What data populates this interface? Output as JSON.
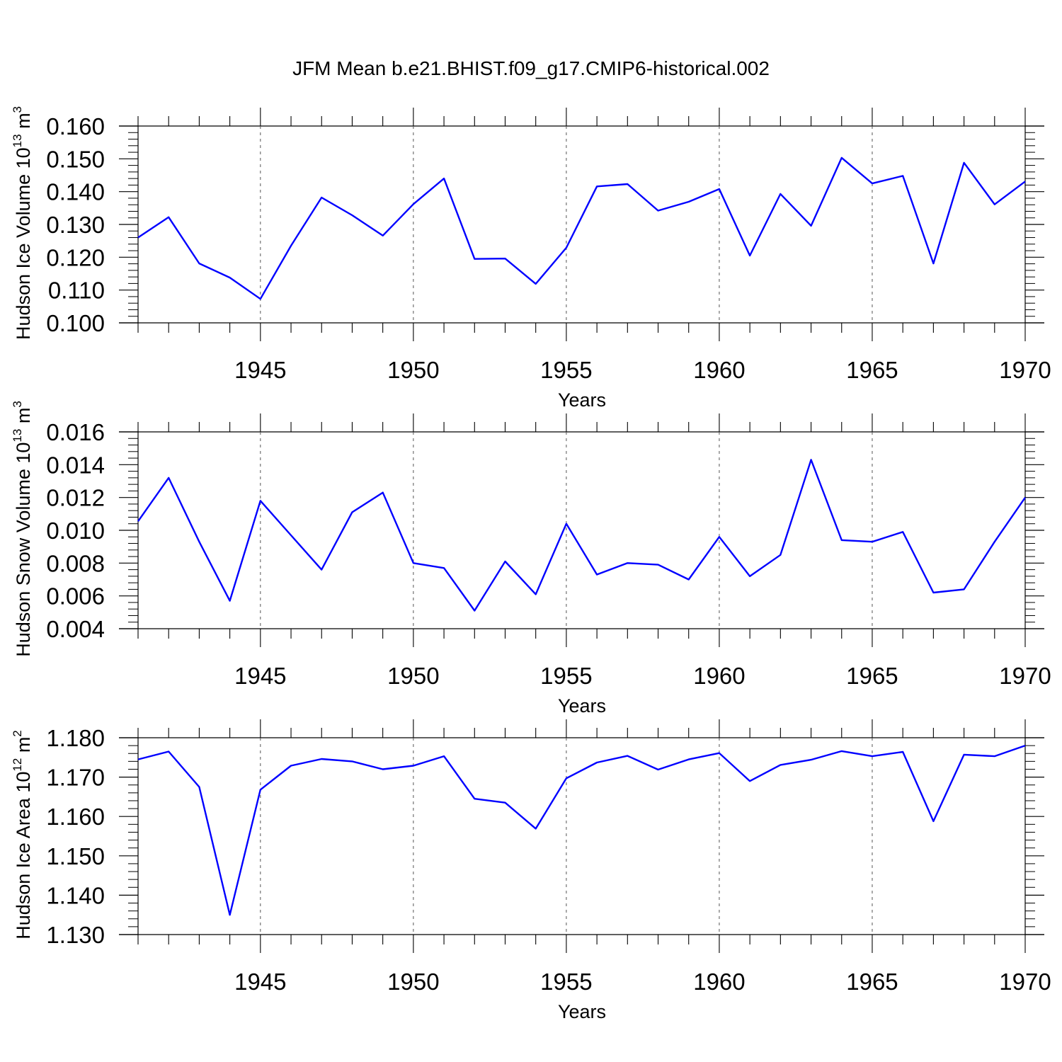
{
  "title": "JFM Mean b.e21.BHIST.f09_g17.CMIP6-historical.002",
  "chart_data": [
    {
      "type": "line",
      "ylabel": {
        "text": "Hudson Ice Volume 10",
        "sup": "13",
        "unit": " m",
        "unit_sup": "3"
      },
      "xlabel": "Years",
      "xlim": [
        1941,
        1970
      ],
      "ylim": [
        0.1,
        0.16
      ],
      "yticks": [
        "0.100",
        "0.110",
        "0.120",
        "0.130",
        "0.140",
        "0.150",
        "0.160"
      ],
      "xticks": [
        "1945",
        "1950",
        "1955",
        "1960",
        "1965",
        "1970"
      ],
      "line_color": "#0000ff",
      "grid": "vertical dashed at major x ticks",
      "x": [
        1941,
        1942,
        1943,
        1944,
        1945,
        1946,
        1947,
        1948,
        1949,
        1950,
        1951,
        1952,
        1953,
        1954,
        1955,
        1956,
        1957,
        1958,
        1959,
        1960,
        1961,
        1962,
        1963,
        1964,
        1965,
        1966,
        1967,
        1968,
        1969,
        1970
      ],
      "values": [
        0.126,
        0.1322,
        0.1181,
        0.1138,
        0.1073,
        0.1235,
        0.1382,
        0.1328,
        0.1266,
        0.1362,
        0.144,
        0.1195,
        0.1196,
        0.1119,
        0.1229,
        0.1416,
        0.1423,
        0.1342,
        0.1369,
        0.1408,
        0.1205,
        0.1393,
        0.1296,
        0.1503,
        0.1425,
        0.1448,
        0.1181,
        0.1488,
        0.1361,
        0.1431
      ]
    },
    {
      "type": "line",
      "ylabel": {
        "text": "Hudson Snow Volume 10",
        "sup": "13",
        "unit": " m",
        "unit_sup": "3"
      },
      "xlabel": "Years",
      "xlim": [
        1941,
        1970
      ],
      "ylim": [
        0.004,
        0.016
      ],
      "yticks": [
        "0.004",
        "0.006",
        "0.008",
        "0.010",
        "0.012",
        "0.014",
        "0.016"
      ],
      "xticks": [
        "1945",
        "1950",
        "1955",
        "1960",
        "1965",
        "1970"
      ],
      "line_color": "#0000ff",
      "grid": "vertical dashed at major x ticks",
      "x": [
        1941,
        1942,
        1943,
        1944,
        1945,
        1946,
        1947,
        1948,
        1949,
        1950,
        1951,
        1952,
        1953,
        1954,
        1955,
        1956,
        1957,
        1958,
        1959,
        1960,
        1961,
        1962,
        1963,
        1964,
        1965,
        1966,
        1967,
        1968,
        1969,
        1970
      ],
      "values": [
        0.01055,
        0.0132,
        0.0093,
        0.0057,
        0.0118,
        0.0097,
        0.0076,
        0.0111,
        0.0123,
        0.008,
        0.0077,
        0.0051,
        0.0081,
        0.0061,
        0.0104,
        0.0073,
        0.008,
        0.0079,
        0.007,
        0.0096,
        0.0072,
        0.0085,
        0.0143,
        0.0094,
        0.0093,
        0.0099,
        0.0062,
        0.0064,
        0.0093,
        0.012
      ]
    },
    {
      "type": "line",
      "ylabel": {
        "text": "Hudson Ice Area 10",
        "sup": "12",
        "unit": " m",
        "unit_sup": "2"
      },
      "xlabel": "Years",
      "xlim": [
        1941,
        1970
      ],
      "ylim": [
        1.13,
        1.18
      ],
      "yticks": [
        "1.130",
        "1.140",
        "1.150",
        "1.160",
        "1.170",
        "1.180"
      ],
      "xticks": [
        "1945",
        "1950",
        "1955",
        "1960",
        "1965",
        "1970"
      ],
      "line_color": "#0000ff",
      "grid": "vertical dashed at major x ticks",
      "x": [
        1941,
        1942,
        1943,
        1944,
        1945,
        1946,
        1947,
        1948,
        1949,
        1950,
        1951,
        1952,
        1953,
        1954,
        1955,
        1956,
        1957,
        1958,
        1959,
        1960,
        1961,
        1962,
        1963,
        1964,
        1965,
        1966,
        1967,
        1968,
        1969,
        1970
      ],
      "values": [
        1.1745,
        1.1765,
        1.1675,
        1.135,
        1.1668,
        1.1729,
        1.1746,
        1.174,
        1.172,
        1.1729,
        1.1753,
        1.1645,
        1.1635,
        1.1569,
        1.1697,
        1.1737,
        1.1754,
        1.1719,
        1.1745,
        1.1761,
        1.169,
        1.1731,
        1.1744,
        1.1766,
        1.1753,
        1.1764,
        1.1588,
        1.1757,
        1.1753,
        1.178
      ]
    }
  ]
}
